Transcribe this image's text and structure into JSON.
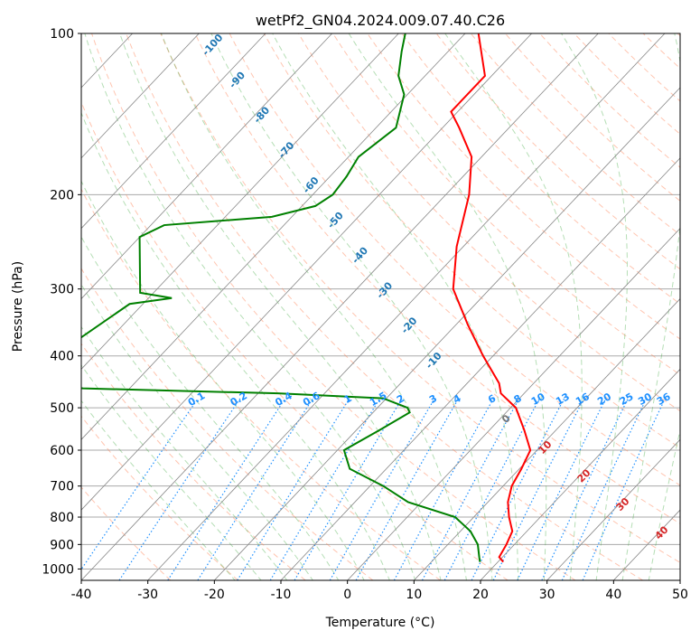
{
  "chart_data": {
    "type": "skew-t",
    "title": "wetPf2_GN04.2024.009.07.40.C26",
    "xlabel": "Temperature (°C)",
    "ylabel": "Pressure (hPa)",
    "xlim": [
      -40,
      50
    ],
    "ylim": [
      1050,
      100
    ],
    "x_ticks": [
      "-40",
      "-30",
      "-20",
      "-10",
      "0",
      "10",
      "20",
      "30",
      "40",
      "50"
    ],
    "y_ticks": [
      "100",
      "200",
      "300",
      "400",
      "500",
      "600",
      "700",
      "800",
      "900",
      "1000"
    ],
    "y_scale": "log",
    "grid": true,
    "series": [
      {
        "role": "temperature",
        "color": "#ff0000",
        "points": [
          {
            "p": 970,
            "t": 20.8
          },
          {
            "p": 950,
            "t": 19.5
          },
          {
            "p": 900,
            "t": 18.8
          },
          {
            "p": 850,
            "t": 17.8
          },
          {
            "p": 800,
            "t": 15.3
          },
          {
            "p": 750,
            "t": 13.0
          },
          {
            "p": 700,
            "t": 11.3
          },
          {
            "p": 650,
            "t": 10.3
          },
          {
            "p": 600,
            "t": 9.0
          },
          {
            "p": 550,
            "t": 5.2
          },
          {
            "p": 500,
            "t": 0.8
          },
          {
            "p": 470,
            "t": -3.5
          },
          {
            "p": 450,
            "t": -5.2
          },
          {
            "p": 400,
            "t": -11.5
          },
          {
            "p": 350,
            "t": -18.2
          },
          {
            "p": 300,
            "t": -25.5
          },
          {
            "p": 250,
            "t": -31.0
          },
          {
            "p": 200,
            "t": -36.5
          },
          {
            "p": 170,
            "t": -41.5
          },
          {
            "p": 150,
            "t": -47.5
          },
          {
            "p": 140,
            "t": -51.0
          },
          {
            "p": 120,
            "t": -51.0
          },
          {
            "p": 100,
            "t": -58.0
          }
        ]
      },
      {
        "role": "dewpoint",
        "color": "#008000",
        "points": [
          {
            "p": 970,
            "t": 17.3
          },
          {
            "p": 950,
            "t": 16.5
          },
          {
            "p": 900,
            "t": 14.5
          },
          {
            "p": 850,
            "t": 11.5
          },
          {
            "p": 800,
            "t": 7.2
          },
          {
            "p": 750,
            "t": -2.0
          },
          {
            "p": 700,
            "t": -8.0
          },
          {
            "p": 650,
            "t": -15.5
          },
          {
            "p": 600,
            "t": -19.0
          },
          {
            "p": 550,
            "t": -16.5
          },
          {
            "p": 510,
            "t": -14.5
          },
          {
            "p": 500,
            "t": -15.5
          },
          {
            "p": 480,
            "t": -20.5
          },
          {
            "p": 470,
            "t": -37.0
          },
          {
            "p": 460,
            "t": -67.0
          },
          {
            "p": 450,
            "t": -78.0
          },
          {
            "p": 320,
            "t": -72.0
          },
          {
            "p": 312,
            "t": -66.5
          },
          {
            "p": 305,
            "t": -72.0
          },
          {
            "p": 240,
            "t": -80.0
          },
          {
            "p": 228,
            "t": -78.0
          },
          {
            "p": 220,
            "t": -63.0
          },
          {
            "p": 210,
            "t": -58.0
          },
          {
            "p": 200,
            "t": -57.0
          },
          {
            "p": 185,
            "t": -57.5
          },
          {
            "p": 170,
            "t": -58.5
          },
          {
            "p": 150,
            "t": -57.0
          },
          {
            "p": 130,
            "t": -60.5
          },
          {
            "p": 120,
            "t": -64.0
          },
          {
            "p": 108,
            "t": -67.0
          },
          {
            "p": 100,
            "t": -69.0
          }
        ]
      }
    ],
    "dry_adiabat_labels": [
      "-100",
      "-90",
      "-80",
      "-70",
      "-60",
      "-50",
      "-40",
      "-30",
      "-20",
      "-10"
    ],
    "mixing_ratio_labels": [
      "0.1",
      "0.2",
      "0.4",
      "0.6",
      "1",
      "1.5",
      "2",
      "3",
      "4",
      "6",
      "8",
      "10",
      "13",
      "16",
      "20",
      "25",
      "30",
      "36"
    ],
    "moist_adiabat_labels": [
      "0",
      "10",
      "20",
      "30",
      "40"
    ],
    "colors": {
      "dry_adiabat": "#ff7f50",
      "moist_adiabat": "#2ca02c",
      "mixing_ratio": "#1e90ff",
      "isotherm": "#888888",
      "isobar": "#aaaaaa",
      "dry_label": "#1f77b4",
      "moist_label_zero": "#777777",
      "moist_label": "#d62728"
    }
  }
}
